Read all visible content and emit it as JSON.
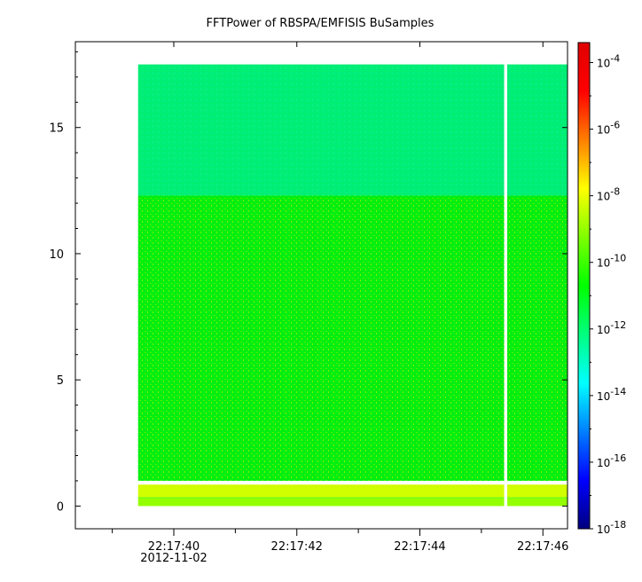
{
  "chart_data": {
    "type": "heatmap",
    "title": "FFTPower of RBSPA/EMFISIS  BuSamples",
    "xlabel": "",
    "ylabel": "",
    "x_ticks": [
      {
        "label": "22:17:40",
        "seconds": 40,
        "sublabel": "2012-11-02"
      },
      {
        "label": "22:17:42",
        "seconds": 42,
        "sublabel": ""
      },
      {
        "label": "22:17:44",
        "seconds": 44,
        "sublabel": ""
      },
      {
        "label": "22:17:46",
        "seconds": 46,
        "sublabel": ""
      }
    ],
    "x_minor_ticks_seconds": [
      39,
      41,
      43,
      45
    ],
    "xlim_seconds": [
      38.4,
      46.4
    ],
    "data_x_range_seconds": [
      38.4,
      46.4
    ],
    "y_ticks": [
      0,
      5,
      10,
      15
    ],
    "ylim": [
      -0.9,
      18.4
    ],
    "data_y_range": [
      0,
      17.5
    ],
    "data_start_seconds": 39.42,
    "gap_seconds": [
      45.37,
      45.42
    ],
    "colorbar": {
      "scale": "log",
      "range_exponent": [
        -18,
        -3.4
      ],
      "ticks": [
        {
          "base": "10",
          "exp": "-4",
          "value_exp": -4
        },
        {
          "base": "10",
          "exp": "-6",
          "value_exp": -6
        },
        {
          "base": "10",
          "exp": "-8",
          "value_exp": -8
        },
        {
          "base": "10",
          "exp": "-10",
          "value_exp": -10
        },
        {
          "base": "10",
          "exp": "-12",
          "value_exp": -12
        },
        {
          "base": "10",
          "exp": "-14",
          "value_exp": -14
        },
        {
          "base": "10",
          "exp": "-16",
          "value_exp": -16
        },
        {
          "base": "10",
          "exp": "-18",
          "value_exp": -18
        }
      ],
      "colormap": [
        "#00007f",
        "#0000ff",
        "#007fff",
        "#00ffff",
        "#00ff7f",
        "#00ff00",
        "#7fff00",
        "#ffff00",
        "#ff7f00",
        "#ff0000",
        "#e00000"
      ]
    },
    "bands": [
      {
        "y_range": [
          12.3,
          17.5
        ],
        "level_exp": -12.2,
        "note": ""
      },
      {
        "y_range": [
          1.0,
          12.3
        ],
        "level_exp": -10.2,
        "note": ""
      },
      {
        "y_range": [
          0.35,
          0.85
        ],
        "level_exp": -8.3,
        "note": ""
      },
      {
        "y_range": [
          0.0,
          0.3
        ],
        "level_exp": -9.0,
        "note": ""
      }
    ]
  }
}
